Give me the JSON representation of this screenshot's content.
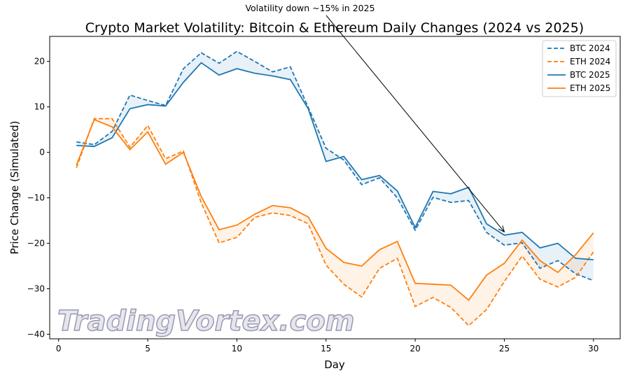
{
  "chart_data": {
    "type": "line",
    "title": "Crypto Market Volatility: Bitcoin & Ethereum Daily Changes (2024 vs 2025)",
    "xlabel": "Day",
    "ylabel": "Price Change (Simulated)",
    "xlim": [
      -0.5,
      31.5
    ],
    "ylim": [
      -41,
      25.5
    ],
    "xticks": [
      0,
      5,
      10,
      15,
      20,
      25,
      30
    ],
    "yticks": [
      -40,
      -30,
      -20,
      -10,
      0,
      10,
      20
    ],
    "grid": false,
    "legend_position": "top-right",
    "x": [
      1,
      2,
      3,
      4,
      5,
      6,
      7,
      8,
      9,
      10,
      11,
      12,
      13,
      14,
      15,
      16,
      17,
      18,
      19,
      20,
      21,
      22,
      23,
      24,
      25,
      26,
      27,
      28,
      29,
      30
    ],
    "series": [
      {
        "name": "BTC 2024",
        "color": "#1f77b4",
        "dash": true,
        "values": [
          2.3,
          1.7,
          4.6,
          12.6,
          11.4,
          10.3,
          18.4,
          21.9,
          19.6,
          22.2,
          20.0,
          17.7,
          18.8,
          9.9,
          0.9,
          -1.7,
          -7.1,
          -5.6,
          -10.0,
          -17.1,
          -9.9,
          -11.0,
          -10.6,
          -17.6,
          -20.4,
          -19.9,
          -25.5,
          -23.8,
          -26.7,
          -28.2
        ]
      },
      {
        "name": "ETH 2024",
        "color": "#ff7f0e",
        "dash": true,
        "values": [
          -3.4,
          7.4,
          7.4,
          1.1,
          5.9,
          -1.4,
          0.3,
          -11.1,
          -19.9,
          -18.7,
          -14.3,
          -13.3,
          -13.9,
          -15.7,
          -24.8,
          -29.0,
          -31.8,
          -25.5,
          -23.3,
          -33.9,
          -31.9,
          -34.1,
          -38.1,
          -34.6,
          -28.4,
          -22.8,
          -27.9,
          -29.6,
          -27.5,
          -21.9
        ]
      },
      {
        "name": "BTC 2025",
        "color": "#1f77b4",
        "dash": false,
        "values": [
          1.5,
          1.3,
          3.2,
          9.6,
          10.5,
          10.2,
          15.4,
          19.7,
          17.0,
          18.4,
          17.4,
          16.8,
          16.0,
          9.6,
          -2.0,
          -0.9,
          -6.0,
          -5.1,
          -8.5,
          -16.5,
          -8.6,
          -9.1,
          -7.7,
          -15.7,
          -18.2,
          -17.6,
          -21.0,
          -20.0,
          -23.3,
          -23.6
        ]
      },
      {
        "name": "ETH 2025",
        "color": "#ff7f0e",
        "dash": false,
        "values": [
          -2.8,
          7.2,
          5.6,
          0.6,
          4.5,
          -2.6,
          0.0,
          -9.7,
          -17.0,
          -16.0,
          -13.6,
          -11.7,
          -12.2,
          -14.2,
          -21.1,
          -24.2,
          -25.0,
          -21.4,
          -19.6,
          -28.8,
          -29.0,
          -29.2,
          -32.5,
          -27.0,
          -24.4,
          -19.3,
          -23.8,
          -26.4,
          -22.5,
          -17.7
        ]
      }
    ],
    "fills": [
      {
        "between": [
          "BTC 2024",
          "BTC 2025"
        ],
        "color": "#1f77b4"
      },
      {
        "between": [
          "ETH 2024",
          "ETH 2025"
        ],
        "color": "#ff7f0e"
      }
    ],
    "annotation": {
      "text": "Volatility down ~15% in 2025",
      "arrow_to": {
        "x": 25,
        "y": -17.5
      }
    }
  },
  "watermark": "TradingVortex.com"
}
